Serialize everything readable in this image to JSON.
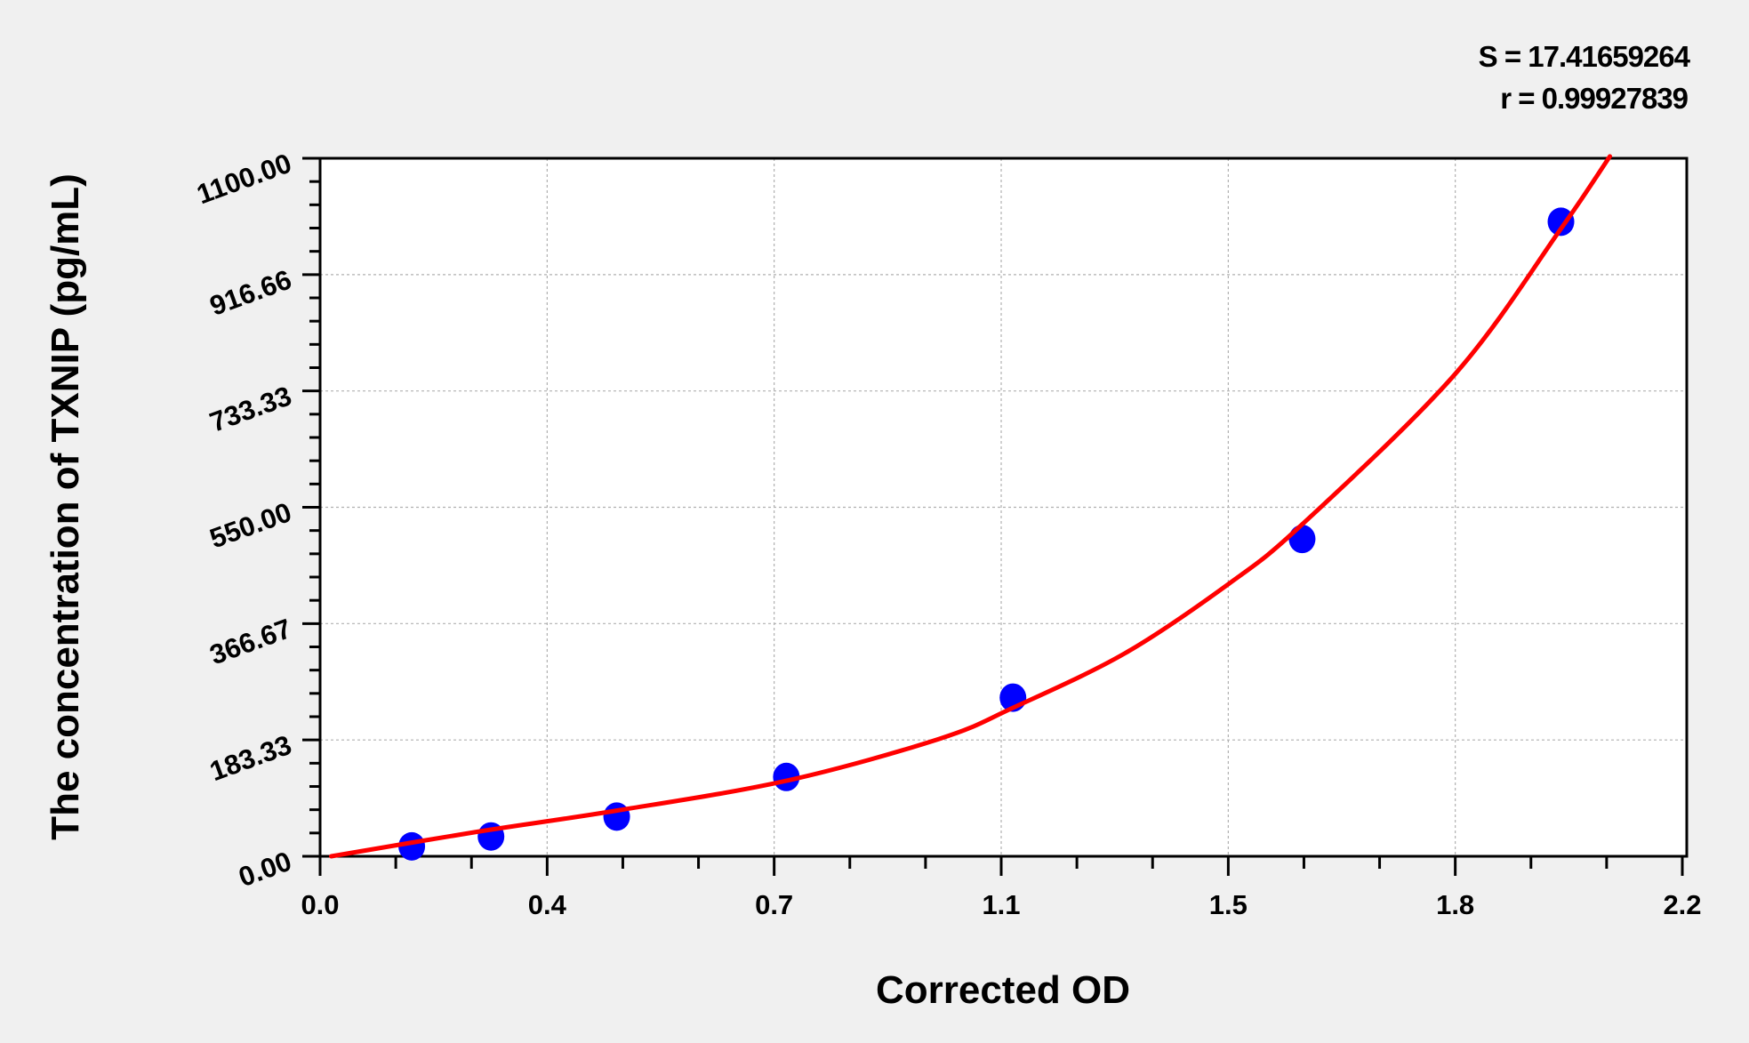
{
  "chart_data": {
    "type": "scatter",
    "xlabel": "Corrected OD",
    "ylabel": "The concentration of TXNIP (pg/mL)",
    "xlim": [
      0,
      2.2
    ],
    "ylim": [
      0,
      1100
    ],
    "x_tick_values": [
      0,
      0.3667,
      0.7333,
      1.1,
      1.4667,
      1.8333,
      2.2
    ],
    "x_tick_labels": [
      "0.0",
      "0.4",
      "0.7",
      "1.1",
      "1.5",
      "1.8",
      "2.2"
    ],
    "y_tick_values": [
      0,
      183.33,
      366.67,
      550,
      733.33,
      916.66,
      1100
    ],
    "y_tick_labels": [
      "0.00",
      "183.33",
      "366.67",
      "550.00",
      "733.33",
      "916.66",
      "1100.00"
    ],
    "grid": true,
    "annotations": [
      "S = 17.41659264",
      "r = 0.99927839"
    ],
    "series": [
      {
        "type": "scatter",
        "color": "#0000ff",
        "x": [
          0.148,
          0.276,
          0.479,
          0.753,
          1.119,
          1.586,
          2.004
        ],
        "y": [
          15.6,
          31.25,
          62.5,
          125,
          250,
          500,
          1000
        ]
      },
      {
        "type": "line",
        "color": "#ff0000",
        "x": [
          0.018,
          0.25,
          0.479,
          0.753,
          1.0,
          1.119,
          1.3,
          1.467,
          1.586,
          1.834,
          2.004,
          2.083
        ],
        "y": [
          0,
          38,
          72,
          119,
          185,
          234,
          320,
          429,
          523,
          761,
          989,
          1103
        ]
      }
    ]
  }
}
